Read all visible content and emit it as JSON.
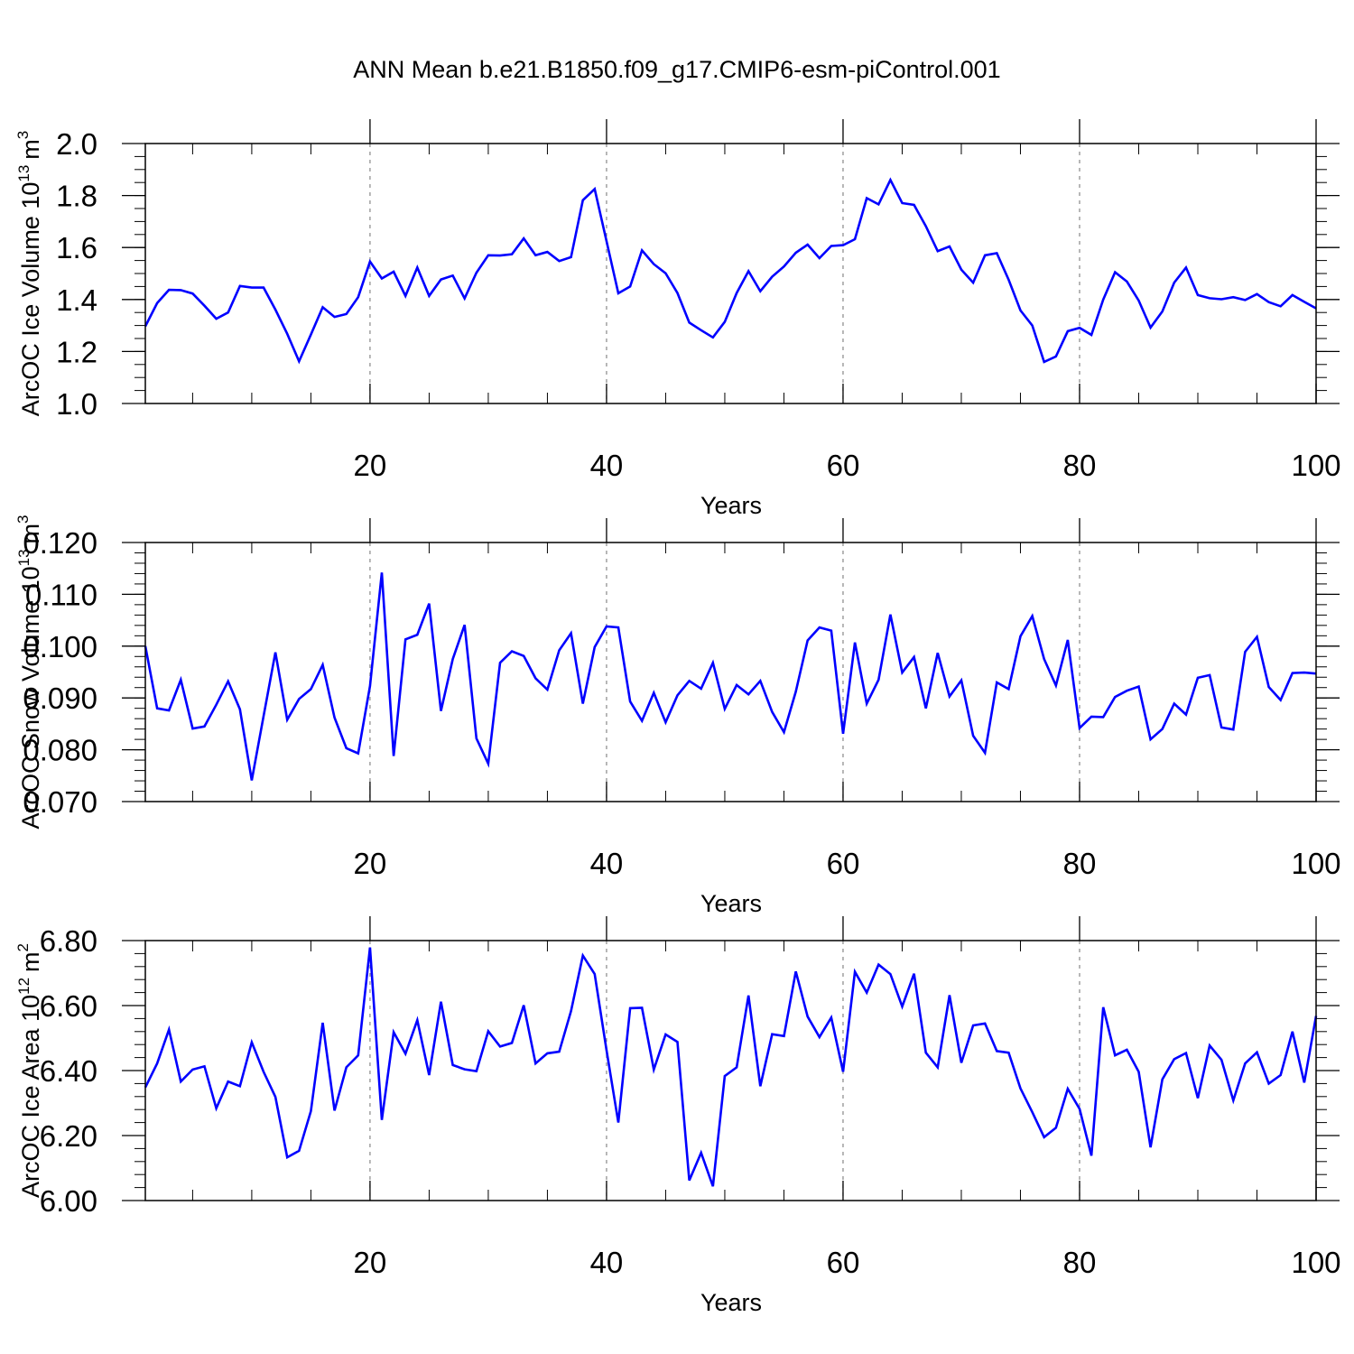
{
  "figure_title": "ANN Mean b.e21.B1850.f09_g17.CMIP6-esm-piControl.001",
  "chart_data": [
    {
      "type": "line",
      "title": "",
      "xlabel": "Years",
      "ylabel": "ArcOC Ice Volume 10",
      "ylabel_exponent": "13",
      "ylabel_unit": "m",
      "ylabel_unit_exponent": "3",
      "xlim": [
        1,
        100
      ],
      "ylim": [
        1.0,
        2.0
      ],
      "x_ticks": [
        20,
        40,
        60,
        80,
        100
      ],
      "x_tick_labels": [
        "20",
        "40",
        "60",
        "80",
        "100"
      ],
      "y_ticks": [
        1.0,
        1.2,
        1.4,
        1.6,
        1.8,
        2.0
      ],
      "y_tick_labels": [
        "1.0",
        "1.2",
        "1.4",
        "1.6",
        "1.8",
        "2.0"
      ],
      "grid_x": [
        20,
        40,
        60,
        80
      ],
      "series": [
        {
          "name": "ArcOC Ice Volume",
          "color": "#0000ff",
          "x_start": 1,
          "values": [
            1.297,
            1.386,
            1.437,
            1.436,
            1.423,
            1.376,
            1.326,
            1.35,
            1.452,
            1.446,
            1.446,
            1.361,
            1.268,
            1.162,
            1.265,
            1.37,
            1.333,
            1.344,
            1.409,
            1.546,
            1.481,
            1.507,
            1.414,
            1.523,
            1.414,
            1.477,
            1.492,
            1.404,
            1.503,
            1.57,
            1.569,
            1.574,
            1.635,
            1.57,
            1.583,
            1.548,
            1.563,
            1.782,
            1.825,
            1.625,
            1.424,
            1.45,
            1.589,
            1.536,
            1.501,
            1.425,
            1.311,
            1.282,
            1.254,
            1.314,
            1.425,
            1.509,
            1.432,
            1.488,
            1.527,
            1.58,
            1.611,
            1.559,
            1.606,
            1.609,
            1.632,
            1.79,
            1.766,
            1.86,
            1.771,
            1.764,
            1.682,
            1.586,
            1.604,
            1.515,
            1.465,
            1.57,
            1.578,
            1.476,
            1.358,
            1.3,
            1.16,
            1.181,
            1.278,
            1.291,
            1.264,
            1.4,
            1.505,
            1.469,
            1.396,
            1.292,
            1.354,
            1.465,
            1.523,
            1.417,
            1.405,
            1.401,
            1.409,
            1.398,
            1.421,
            1.39,
            1.374,
            1.417,
            1.391,
            1.366
          ]
        }
      ]
    },
    {
      "type": "line",
      "title": "",
      "xlabel": "Years",
      "ylabel": "ArcOC Snow Volume 10",
      "ylabel_exponent": "13",
      "ylabel_unit": "m",
      "ylabel_unit_exponent": "3",
      "xlim": [
        1,
        100
      ],
      "ylim": [
        0.07,
        0.12
      ],
      "x_ticks": [
        20,
        40,
        60,
        80,
        100
      ],
      "x_tick_labels": [
        "20",
        "40",
        "60",
        "80",
        "100"
      ],
      "y_ticks": [
        0.07,
        0.08,
        0.09,
        0.1,
        0.11,
        0.12
      ],
      "y_tick_labels": [
        "0.070",
        "0.080",
        "0.090",
        "0.100",
        "0.110",
        "0.120"
      ],
      "grid_x": [
        20,
        40,
        60,
        80
      ],
      "series": [
        {
          "name": "ArcOC Snow Volume",
          "color": "#0000ff",
          "x_start": 1,
          "values": [
            0.1,
            0.088,
            0.0876,
            0.0935,
            0.0841,
            0.0845,
            0.0887,
            0.0932,
            0.0878,
            0.0741,
            0.0865,
            0.0988,
            0.0858,
            0.0898,
            0.0917,
            0.0964,
            0.0862,
            0.0803,
            0.0793,
            0.0923,
            0.1142,
            0.0788,
            0.1013,
            0.1022,
            0.1082,
            0.0875,
            0.0975,
            0.1041,
            0.0822,
            0.0773,
            0.0968,
            0.099,
            0.0981,
            0.0938,
            0.0916,
            0.0992,
            0.1025,
            0.0889,
            0.0998,
            0.1038,
            0.1036,
            0.0893,
            0.0856,
            0.091,
            0.0853,
            0.0905,
            0.0933,
            0.0918,
            0.0968,
            0.0879,
            0.0925,
            0.0907,
            0.0933,
            0.0873,
            0.0834,
            0.0912,
            0.1011,
            0.1036,
            0.103,
            0.0831,
            0.1007,
            0.0889,
            0.0935,
            0.1061,
            0.0949,
            0.0979,
            0.088,
            0.0987,
            0.0903,
            0.0934,
            0.0827,
            0.0794,
            0.093,
            0.0917,
            0.1019,
            0.1058,
            0.0975,
            0.0924,
            0.1012,
            0.0842,
            0.0864,
            0.0863,
            0.0902,
            0.0914,
            0.0922,
            0.082,
            0.084,
            0.0889,
            0.0868,
            0.0939,
            0.0944,
            0.0843,
            0.0839,
            0.0989,
            0.1018,
            0.0921,
            0.0896,
            0.0948,
            0.0949,
            0.0947
          ]
        }
      ]
    },
    {
      "type": "line",
      "title": "",
      "xlabel": "Years",
      "ylabel": "ArcOC Ice Area 10",
      "ylabel_exponent": "12",
      "ylabel_unit": "m",
      "ylabel_unit_exponent": "2",
      "xlim": [
        1,
        100
      ],
      "ylim": [
        6.0,
        6.8
      ],
      "x_ticks": [
        20,
        40,
        60,
        80,
        100
      ],
      "x_tick_labels": [
        "20",
        "40",
        "60",
        "80",
        "100"
      ],
      "y_ticks": [
        6.0,
        6.2,
        6.4,
        6.6,
        6.8
      ],
      "y_tick_labels": [
        "6.00",
        "6.20",
        "6.40",
        "6.60",
        "6.80"
      ],
      "grid_x": [
        20,
        40,
        60,
        80
      ],
      "series": [
        {
          "name": "ArcOC Ice Area",
          "color": "#0000ff",
          "x_start": 1,
          "values": [
            6.348,
            6.422,
            6.526,
            6.366,
            6.403,
            6.413,
            6.284,
            6.366,
            6.352,
            6.487,
            6.396,
            6.319,
            6.133,
            6.153,
            6.275,
            6.547,
            6.277,
            6.41,
            6.447,
            6.779,
            6.248,
            6.518,
            6.452,
            6.555,
            6.386,
            6.612,
            6.417,
            6.404,
            6.398,
            6.521,
            6.474,
            6.485,
            6.601,
            6.422,
            6.453,
            6.458,
            6.583,
            6.754,
            6.697,
            6.463,
            6.24,
            6.592,
            6.593,
            6.403,
            6.511,
            6.488,
            6.062,
            6.147,
            6.044,
            6.383,
            6.41,
            6.631,
            6.352,
            6.512,
            6.506,
            6.705,
            6.566,
            6.503,
            6.563,
            6.396,
            6.704,
            6.64,
            6.726,
            6.697,
            6.597,
            6.698,
            6.455,
            6.41,
            6.632,
            6.424,
            6.539,
            6.545,
            6.46,
            6.455,
            6.345,
            6.272,
            6.195,
            6.224,
            6.344,
            6.282,
            6.138,
            6.595,
            6.447,
            6.464,
            6.396,
            6.164,
            6.373,
            6.435,
            6.454,
            6.315,
            6.477,
            6.433,
            6.308,
            6.422,
            6.456,
            6.36,
            6.386,
            6.52,
            6.363,
            6.568
          ]
        }
      ]
    }
  ]
}
